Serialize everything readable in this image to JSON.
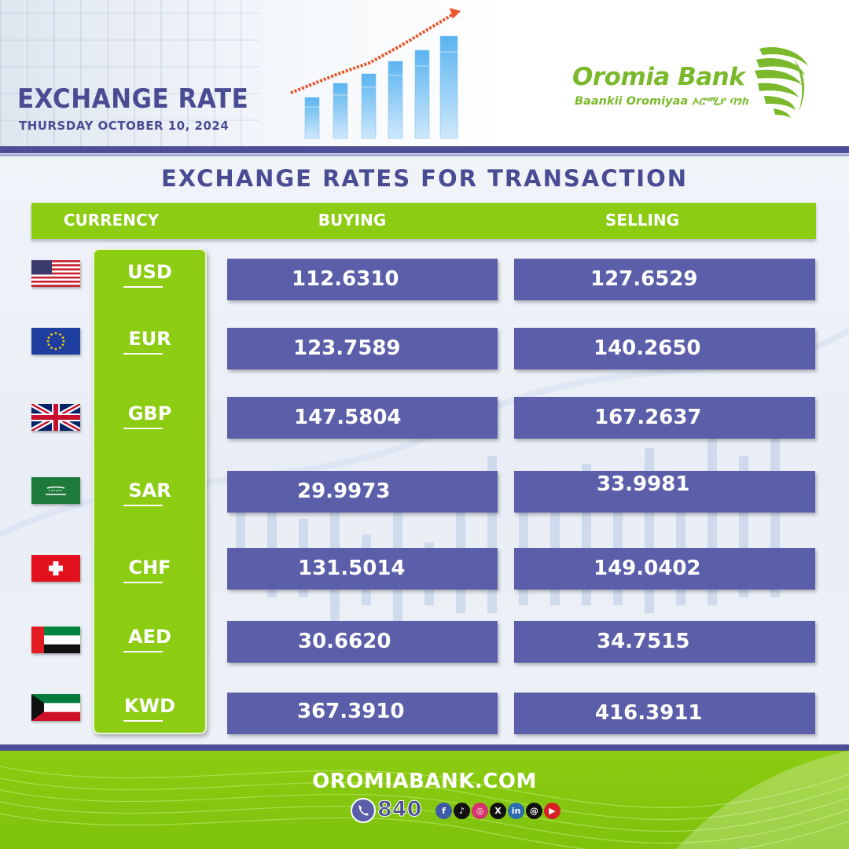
{
  "header": {
    "title": "EXCHANGE RATE",
    "date": "THURSDAY OCTOBER 10, 2024",
    "logo_name": "Oromia Bank",
    "logo_sub": "Baankii Oromiyaa ኦሮሚያ ባንክ"
  },
  "section_title": "EXCHANGE RATES FOR TRANSACTION",
  "table": {
    "col_currency": "CURRENCY",
    "col_buying": "BUYING",
    "col_selling": "SELLING",
    "rows": [
      {
        "code": "USD",
        "flag": "us-flag-icon",
        "buying": "112.6310",
        "selling": "127.6529"
      },
      {
        "code": "EUR",
        "flag": "eu-flag-icon",
        "buying": "123.7589",
        "selling": "140.2650"
      },
      {
        "code": "GBP",
        "flag": "uk-flag-icon",
        "buying": "147.5804",
        "selling": "167.2637"
      },
      {
        "code": "SAR",
        "flag": "saudi-flag-icon",
        "buying": "29.9973",
        "selling": "33.9981"
      },
      {
        "code": "CHF",
        "flag": "swiss-flag-icon",
        "buying": "131.5014",
        "selling": "149.0402"
      },
      {
        "code": "AED",
        "flag": "uae-flag-icon",
        "buying": "30.6620",
        "selling": "34.7515"
      },
      {
        "code": "KWD",
        "flag": "kuwait-flag-icon",
        "buying": "367.3910",
        "selling": "416.3911"
      }
    ]
  },
  "footer": {
    "website": "OROMIABANK.COM",
    "phone": "840",
    "socials": [
      "facebook-icon",
      "tiktok-icon",
      "instagram-icon",
      "x-icon",
      "linkedin-icon",
      "threads-icon",
      "youtube-icon"
    ]
  },
  "colors": {
    "brand_purple": "#4d4f96",
    "brand_green": "#8ccc12",
    "rate_box": "#5b5ea8"
  }
}
